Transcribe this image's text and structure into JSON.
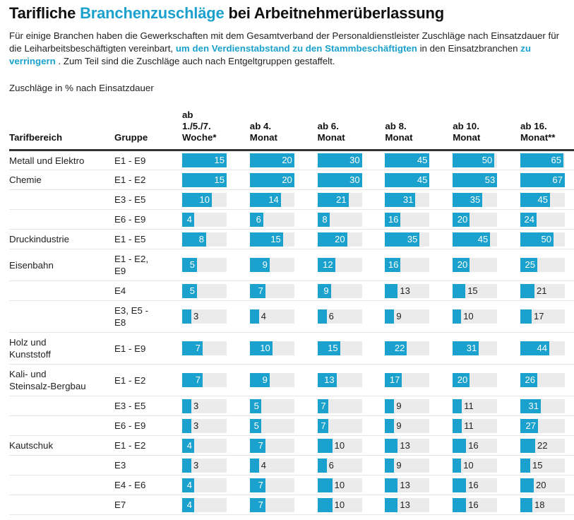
{
  "header": {
    "title_pre": "Tarifliche ",
    "title_highlight": "Branchenzuschläge",
    "title_post": " bei Arbeitnehmerüberlassung",
    "intro_1": "Für einige Branchen haben die Gewerkschaften mit dem Gesamtverband der Personaldienstleister Zuschläge nach Einsatzdauer für die Leiharbeitsbeschäftigten vereinbart, ",
    "intro_link_1": "um den Verdienstabstand zu den Stammbeschäftigten",
    "intro_2": " in den Einsatzbranchen ",
    "intro_link_2": "zu verringern",
    "intro_3": " . Zum Teil sind die Zuschläge auch nach Entgeltgruppen gestaffelt.",
    "unit_label": "Zuschläge in % nach Einsatzdauer"
  },
  "colors": {
    "accent": "#1aa1cd",
    "bar_bg": "#ebebeb",
    "rule": "#333333"
  },
  "chart_data": {
    "type": "table",
    "title": "Tarifliche Branchenzuschläge bei Arbeitnehmerüberlassung",
    "subtitle": "Zuschläge in % nach Einsatzdauer",
    "columns": [
      "Tarifbereich",
      "Gruppe",
      "ab 1./5./7. Woche*",
      "ab 4. Monat",
      "ab 6. Monat",
      "ab 8. Monat",
      "ab 10. Monat",
      "ab 16. Monat**"
    ],
    "column_max": [
      15,
      20,
      30,
      45,
      53,
      67
    ],
    "rows": [
      {
        "tarifbereich": "Metall und Elektro",
        "gruppe": "E1 - E9",
        "values": [
          15,
          20,
          30,
          45,
          50,
          65
        ]
      },
      {
        "tarifbereich": "Chemie",
        "gruppe": "E1 - E2",
        "values": [
          15,
          20,
          30,
          45,
          53,
          67
        ]
      },
      {
        "tarifbereich": "",
        "gruppe": "E3 - E5",
        "values": [
          10,
          14,
          21,
          31,
          35,
          45
        ]
      },
      {
        "tarifbereich": "",
        "gruppe": "E6 - E9",
        "values": [
          4,
          6,
          8,
          16,
          20,
          24
        ]
      },
      {
        "tarifbereich": "Druckindustrie",
        "gruppe": "E1 - E5",
        "values": [
          8,
          15,
          20,
          35,
          45,
          50
        ]
      },
      {
        "tarifbereich": "Eisenbahn",
        "gruppe": "E1 - E2, E9",
        "values": [
          5,
          9,
          12,
          16,
          20,
          25
        ]
      },
      {
        "tarifbereich": "",
        "gruppe": "E4",
        "values": [
          5,
          7,
          9,
          13,
          15,
          21
        ]
      },
      {
        "tarifbereich": "",
        "gruppe": "E3, E5 - E8",
        "values": [
          3,
          4,
          6,
          9,
          10,
          17
        ]
      },
      {
        "tarifbereich": "Holz und Kunststoff",
        "gruppe": "E1 - E9",
        "values": [
          7,
          10,
          15,
          22,
          31,
          44
        ]
      },
      {
        "tarifbereich": "Kali- und Steinsalz-Bergbau",
        "gruppe": "E1 - E2",
        "values": [
          7,
          9,
          13,
          17,
          20,
          26
        ]
      },
      {
        "tarifbereich": "",
        "gruppe": "E3 - E5",
        "values": [
          3,
          5,
          7,
          9,
          11,
          31
        ]
      },
      {
        "tarifbereich": "",
        "gruppe": "E6 - E9",
        "values": [
          3,
          5,
          7,
          9,
          11,
          27
        ]
      },
      {
        "tarifbereich": "Kautschuk",
        "gruppe": "E1 - E2",
        "values": [
          4,
          7,
          10,
          13,
          16,
          22
        ]
      },
      {
        "tarifbereich": "",
        "gruppe": "E3",
        "values": [
          3,
          4,
          6,
          9,
          10,
          15
        ]
      },
      {
        "tarifbereich": "",
        "gruppe": "E4 - E6",
        "values": [
          4,
          7,
          10,
          13,
          16,
          20
        ]
      },
      {
        "tarifbereich": "",
        "gruppe": "E7",
        "values": [
          4,
          7,
          10,
          13,
          16,
          18
        ]
      }
    ]
  }
}
